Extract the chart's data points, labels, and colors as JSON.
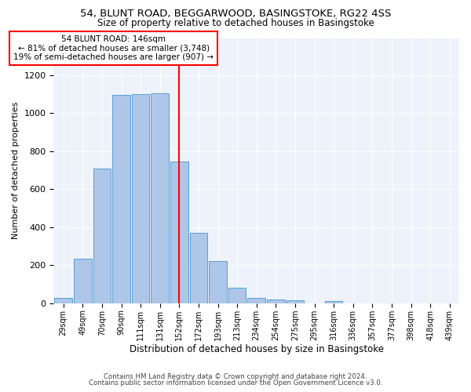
{
  "title1": "54, BLUNT ROAD, BEGGARWOOD, BASINGSTOKE, RG22 4SS",
  "title2": "Size of property relative to detached houses in Basingstoke",
  "xlabel": "Distribution of detached houses by size in Basingstoke",
  "ylabel": "Number of detached properties",
  "categories": [
    "29sqm",
    "49sqm",
    "70sqm",
    "90sqm",
    "111sqm",
    "131sqm",
    "152sqm",
    "172sqm",
    "193sqm",
    "213sqm",
    "234sqm",
    "254sqm",
    "275sqm",
    "295sqm",
    "316sqm",
    "336sqm",
    "357sqm",
    "377sqm",
    "398sqm",
    "418sqm",
    "439sqm"
  ],
  "values": [
    30,
    235,
    710,
    1095,
    1100,
    1105,
    745,
    370,
    220,
    80,
    30,
    20,
    15,
    0,
    10,
    0,
    0,
    0,
    0,
    0,
    0
  ],
  "bar_color": "#aec6e8",
  "bar_edge_color": "#5a9fd4",
  "vline_index": 6,
  "vline_color": "red",
  "annotation_line1": "54 BLUNT ROAD: 146sqm",
  "annotation_line2": "← 81% of detached houses are smaller (3,748)",
  "annotation_line3": "19% of semi-detached houses are larger (907) →",
  "annotation_box_fc": "white",
  "annotation_box_ec": "red",
  "bg_color": "#eef2fb",
  "ylim": [
    0,
    1400
  ],
  "yticks": [
    0,
    200,
    400,
    600,
    800,
    1000,
    1200,
    1400
  ],
  "footer1": "Contains HM Land Registry data © Crown copyright and database right 2024.",
  "footer2": "Contains public sector information licensed under the Open Government Licence v3.0."
}
